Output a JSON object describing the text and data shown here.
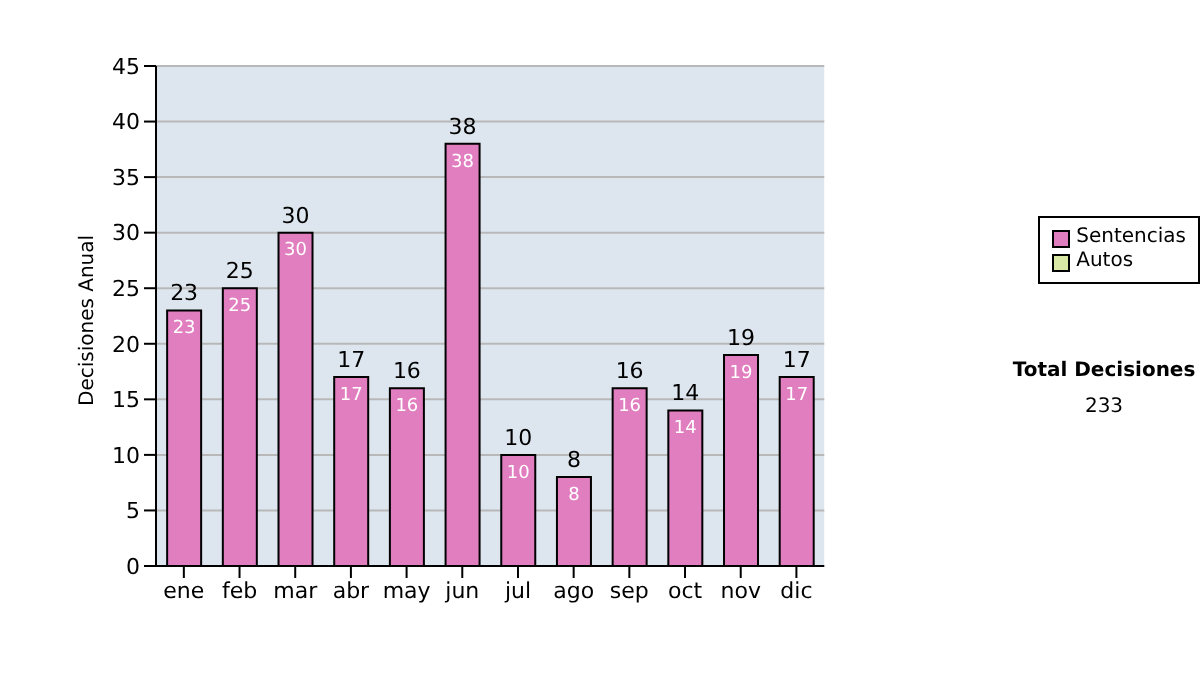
{
  "chart_data": {
    "type": "bar",
    "stacked": true,
    "ylabel": "Decisiones Anual",
    "categories": [
      "ene",
      "feb",
      "mar",
      "abr",
      "may",
      "jun",
      "jul",
      "ago",
      "sep",
      "oct",
      "nov",
      "dic"
    ],
    "series": [
      {
        "name": "Sentencias",
        "color": "#e07ec0",
        "values": [
          23,
          25,
          30,
          17,
          16,
          38,
          10,
          8,
          16,
          14,
          19,
          17
        ],
        "value_labels": [
          "23",
          "25",
          "30",
          "17",
          "16",
          "38",
          "10",
          "8",
          "16",
          "14",
          "19",
          "17"
        ]
      },
      {
        "name": "Autos",
        "color": "#d9e8a4",
        "values": [
          0,
          0,
          0,
          0,
          0,
          0,
          0,
          0,
          0,
          0,
          0,
          0
        ]
      }
    ],
    "totals": [
      "23",
      "25",
      "30",
      "17",
      "16",
      "38",
      "10",
      "8",
      "16",
      "14",
      "19",
      "17"
    ],
    "ylim": [
      0,
      45
    ],
    "yticks": [
      0,
      5,
      10,
      15,
      20,
      25,
      30,
      35,
      40,
      45
    ],
    "grid": "y",
    "legend": "right",
    "annotations": [
      "Total Decisiones",
      "233"
    ]
  }
}
